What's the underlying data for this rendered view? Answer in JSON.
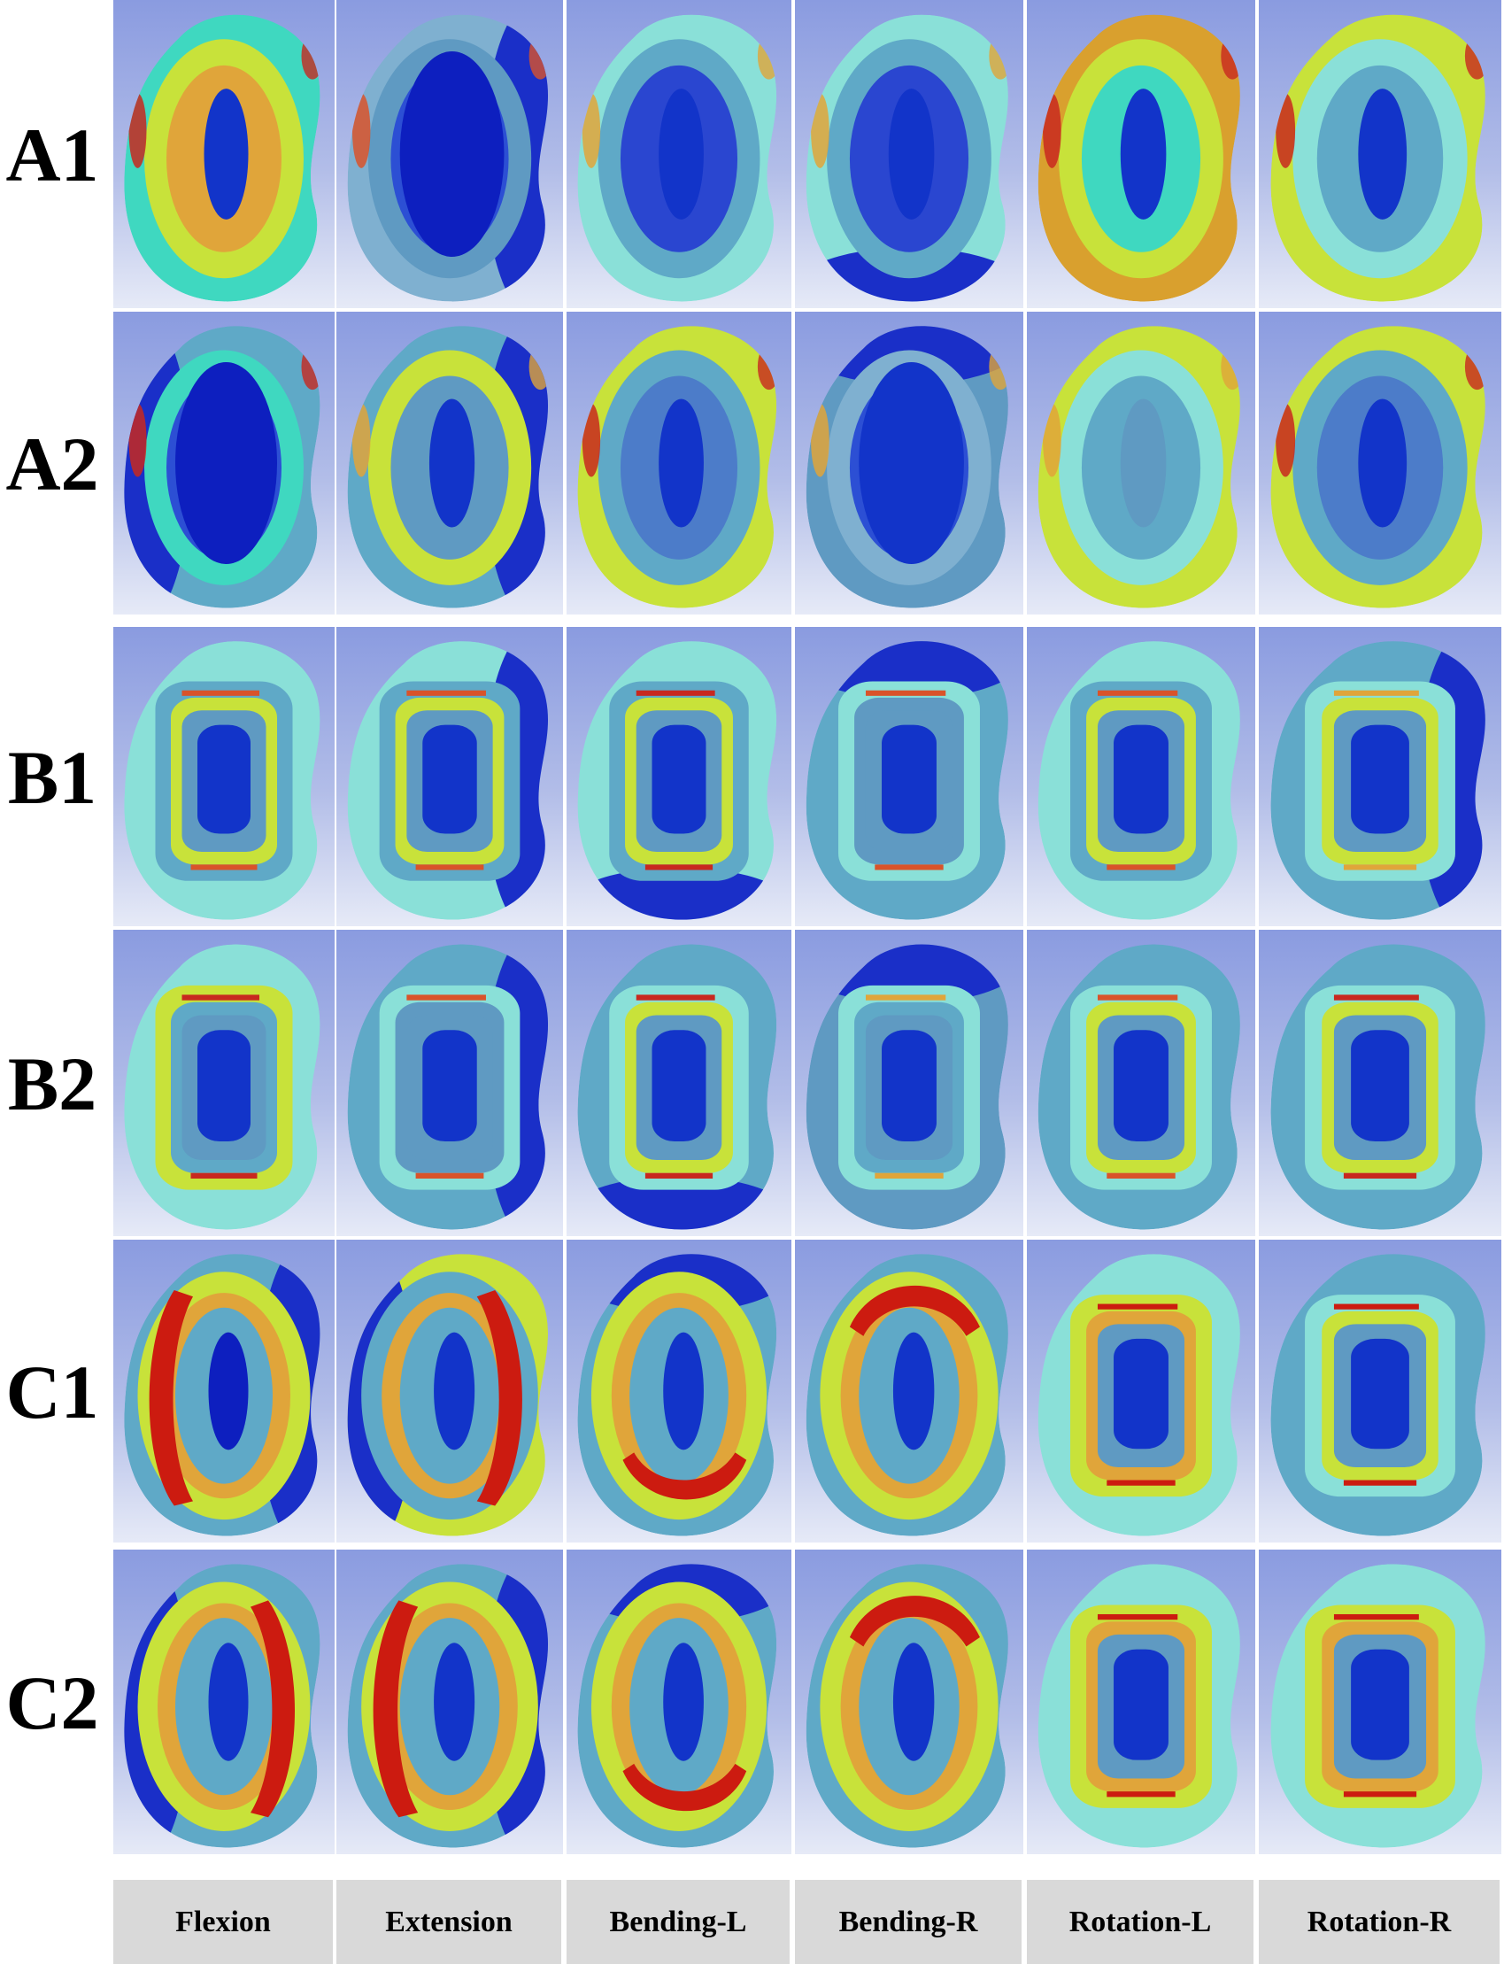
{
  "columns": [
    "Flexion",
    "Extension",
    "Bending-L",
    "Bending-R",
    "Rotation-L",
    "Rotation-R"
  ],
  "rows": [
    {
      "label": "A1",
      "cells": [
        {
          "pattern": "ring-bands",
          "rim": "#3fd8c0",
          "mid": "#c8e23a",
          "inner": "#e0a53a",
          "core": "#1234c9",
          "peak": "#c8281f",
          "dark_side": "none"
        },
        {
          "pattern": "dark-body",
          "rim": "#7fb0d0",
          "mid": "#5f9ac2",
          "inner": "#2c4fd4",
          "core": "#0d1fbf",
          "peak": "#d9532a",
          "dark_side": "right"
        },
        {
          "pattern": "patchy",
          "rim": "#8ae0d8",
          "mid": "#5fa9c7",
          "inner": "#2a46d0",
          "core": "#1234c9",
          "peak": "#e0a53a",
          "dark_side": "none"
        },
        {
          "pattern": "patchy",
          "rim": "#8ae0d8",
          "mid": "#5fa9c7",
          "inner": "#2a46d0",
          "core": "#1234c9",
          "peak": "#e0a53a",
          "dark_side": "bottom"
        },
        {
          "pattern": "ring-bands",
          "rim": "#d9a02e",
          "mid": "#c8e23a",
          "inner": "#3fd8c0",
          "core": "#1234c9",
          "peak": "#c8281f",
          "dark_side": "none"
        },
        {
          "pattern": "ring-bands",
          "rim": "#c8e23a",
          "mid": "#8ae0d8",
          "inner": "#5fa9c7",
          "core": "#1234c9",
          "peak": "#c8281f",
          "dark_side": "none"
        }
      ]
    },
    {
      "label": "A2",
      "cells": [
        {
          "pattern": "dark-body",
          "rim": "#5fa9c7",
          "mid": "#3fd8c0",
          "inner": "#2c4fd4",
          "core": "#0d1fbf",
          "peak": "#c8281f",
          "dark_side": "left"
        },
        {
          "pattern": "ring-bands",
          "rim": "#5fa9c7",
          "mid": "#c8e23a",
          "inner": "#5f9ac2",
          "core": "#1234c9",
          "peak": "#e0a53a",
          "dark_side": "right"
        },
        {
          "pattern": "ring-bands",
          "rim": "#c8e23a",
          "mid": "#5fa9c7",
          "inner": "#4c7cc9",
          "core": "#1234c9",
          "peak": "#c8281f",
          "dark_side": "none"
        },
        {
          "pattern": "dark-body",
          "rim": "#5f9ac2",
          "mid": "#7fb0d0",
          "inner": "#2c4fd4",
          "core": "#1234c9",
          "peak": "#e0a53a",
          "dark_side": "top"
        },
        {
          "pattern": "patchy",
          "rim": "#c8e23a",
          "mid": "#8ae0d8",
          "inner": "#5fa9c7",
          "core": "#5f9ac2",
          "peak": "#e0a53a",
          "dark_side": "none"
        },
        {
          "pattern": "ring-bands",
          "rim": "#c8e23a",
          "mid": "#5fa9c7",
          "inner": "#4c7cc9",
          "core": "#1234c9",
          "peak": "#c8281f",
          "dark_side": "none"
        }
      ]
    },
    {
      "label": "B1",
      "cells": [
        {
          "pattern": "ring-square",
          "rim": "#8ae0d8",
          "mid": "#5fa9c7",
          "inner": "#c8e23a",
          "core": "#1234c9",
          "peak": "#d9532a",
          "dark_side": "none"
        },
        {
          "pattern": "ring-square",
          "rim": "#8ae0d8",
          "mid": "#5fa9c7",
          "inner": "#c8e23a",
          "core": "#1234c9",
          "peak": "#d9532a",
          "dark_side": "right"
        },
        {
          "pattern": "ring-square",
          "rim": "#8ae0d8",
          "mid": "#5fa9c7",
          "inner": "#c8e23a",
          "core": "#1234c9",
          "peak": "#c8281f",
          "dark_side": "bottom"
        },
        {
          "pattern": "ring-square",
          "rim": "#5fa9c7",
          "mid": "#8ae0d8",
          "inner": "#5f9ac2",
          "core": "#1234c9",
          "peak": "#d9532a",
          "dark_side": "top"
        },
        {
          "pattern": "ring-square",
          "rim": "#8ae0d8",
          "mid": "#5fa9c7",
          "inner": "#c8e23a",
          "core": "#1234c9",
          "peak": "#d9532a",
          "dark_side": "none"
        },
        {
          "pattern": "ring-square",
          "rim": "#5fa9c7",
          "mid": "#8ae0d8",
          "inner": "#c8e23a",
          "core": "#1234c9",
          "peak": "#e0a53a",
          "dark_side": "right"
        }
      ]
    },
    {
      "label": "B2",
      "cells": [
        {
          "pattern": "ring-square",
          "rim": "#8ae0d8",
          "mid": "#c8e23a",
          "inner": "#5fa9c7",
          "core": "#1234c9",
          "peak": "#c8281f",
          "dark_side": "none"
        },
        {
          "pattern": "ring-square",
          "rim": "#5fa9c7",
          "mid": "#8ae0d8",
          "inner": "#5f9ac2",
          "core": "#1234c9",
          "peak": "#d9532a",
          "dark_side": "right"
        },
        {
          "pattern": "ring-square",
          "rim": "#5fa9c7",
          "mid": "#8ae0d8",
          "inner": "#c8e23a",
          "core": "#1234c9",
          "peak": "#c8281f",
          "dark_side": "bottom"
        },
        {
          "pattern": "ring-square",
          "rim": "#5f9ac2",
          "mid": "#8ae0d8",
          "inner": "#5fa9c7",
          "core": "#1234c9",
          "peak": "#e0a53a",
          "dark_side": "top"
        },
        {
          "pattern": "ring-square",
          "rim": "#5fa9c7",
          "mid": "#8ae0d8",
          "inner": "#c8e23a",
          "core": "#1234c9",
          "peak": "#d9532a",
          "dark_side": "none"
        },
        {
          "pattern": "ring-square",
          "rim": "#5fa9c7",
          "mid": "#8ae0d8",
          "inner": "#c8e23a",
          "core": "#1234c9",
          "peak": "#c8281f",
          "dark_side": "none"
        }
      ]
    },
    {
      "label": "C1",
      "cells": [
        {
          "pattern": "crescent-left",
          "rim": "#5fa9c7",
          "mid": "#c8e23a",
          "inner": "#e0a53a",
          "core": "#0d1fbf",
          "peak": "#cc1b10",
          "dark_side": "right"
        },
        {
          "pattern": "crescent-right",
          "rim": "#c8e23a",
          "mid": "#5fa9c7",
          "inner": "#e0a53a",
          "core": "#1234c9",
          "peak": "#cc1b10",
          "dark_side": "left"
        },
        {
          "pattern": "crescent-bottom",
          "rim": "#5fa9c7",
          "mid": "#c8e23a",
          "inner": "#e0a53a",
          "core": "#1234c9",
          "peak": "#cc1b10",
          "dark_side": "top"
        },
        {
          "pattern": "crescent-top",
          "rim": "#5fa9c7",
          "mid": "#c8e23a",
          "inner": "#e0a53a",
          "core": "#1234c9",
          "peak": "#cc1b10",
          "dark_side": "none"
        },
        {
          "pattern": "ring-square",
          "rim": "#8ae0d8",
          "mid": "#c8e23a",
          "inner": "#e0a53a",
          "core": "#1234c9",
          "peak": "#cc1b10",
          "dark_side": "none"
        },
        {
          "pattern": "ring-square",
          "rim": "#5fa9c7",
          "mid": "#8ae0d8",
          "inner": "#c8e23a",
          "core": "#1234c9",
          "peak": "#cc1b10",
          "dark_side": "none"
        }
      ]
    },
    {
      "label": "C2",
      "cells": [
        {
          "pattern": "crescent-right",
          "rim": "#5fa9c7",
          "mid": "#c8e23a",
          "inner": "#e0a53a",
          "core": "#1234c9",
          "peak": "#cc1b10",
          "dark_side": "left"
        },
        {
          "pattern": "crescent-left",
          "rim": "#5fa9c7",
          "mid": "#c8e23a",
          "inner": "#e0a53a",
          "core": "#1234c9",
          "peak": "#cc1b10",
          "dark_side": "right"
        },
        {
          "pattern": "crescent-bottom",
          "rim": "#5fa9c7",
          "mid": "#c8e23a",
          "inner": "#e0a53a",
          "core": "#1234c9",
          "peak": "#cc1b10",
          "dark_side": "top"
        },
        {
          "pattern": "crescent-top",
          "rim": "#5fa9c7",
          "mid": "#c8e23a",
          "inner": "#e0a53a",
          "core": "#1234c9",
          "peak": "#cc1b10",
          "dark_side": "none"
        },
        {
          "pattern": "ring-square",
          "rim": "#8ae0d8",
          "mid": "#c8e23a",
          "inner": "#e0a53a",
          "core": "#1234c9",
          "peak": "#cc1b10",
          "dark_side": "none"
        },
        {
          "pattern": "ring-square",
          "rim": "#8ae0d8",
          "mid": "#c8e23a",
          "inner": "#e0a53a",
          "core": "#1234c9",
          "peak": "#cc1b10",
          "dark_side": "none"
        }
      ]
    }
  ]
}
